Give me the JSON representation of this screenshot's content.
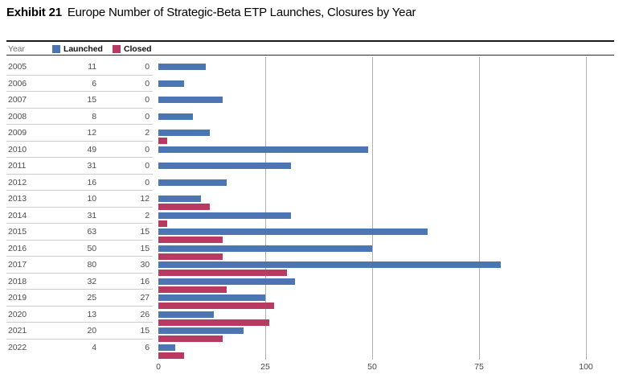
{
  "title": {
    "exhibit_label": "Exhibit 21",
    "title_text": "Europe Number of Strategic-Beta ETP Launches, Closures by Year"
  },
  "table": {
    "year_header": "Year"
  },
  "legend": {
    "launched": "Launched",
    "closed": "Closed"
  },
  "colors": {
    "launched": "#4b76b3",
    "closed": "#b83a60",
    "gridline": "#9d9d9d",
    "separator": "#cccccc",
    "header_rule": "#1a1a1a",
    "table_text": "#4d4d4d",
    "axis_text": "#464646"
  },
  "chart_data": {
    "type": "bar",
    "orientation": "horizontal",
    "title": "Europe Number of Strategic-Beta ETP Launches, Closures by Year",
    "categories": [
      "2005",
      "2006",
      "2007",
      "2008",
      "2009",
      "2010",
      "2011",
      "2012",
      "2013",
      "2014",
      "2015",
      "2016",
      "2017",
      "2018",
      "2019",
      "2020",
      "2021",
      "2022"
    ],
    "series": [
      {
        "name": "Launched",
        "color": "#4b76b3",
        "values": [
          11,
          6,
          15,
          8,
          12,
          49,
          31,
          16,
          10,
          31,
          63,
          50,
          80,
          32,
          25,
          13,
          20,
          4
        ]
      },
      {
        "name": "Closed",
        "color": "#b83a60",
        "values": [
          0,
          0,
          0,
          0,
          2,
          0,
          0,
          0,
          12,
          2,
          15,
          15,
          30,
          16,
          27,
          26,
          15,
          6
        ]
      }
    ],
    "xlim": [
      0,
      100
    ],
    "x_ticks": [
      0,
      25,
      50,
      75,
      100
    ],
    "grid": true,
    "legend_position": "top"
  }
}
